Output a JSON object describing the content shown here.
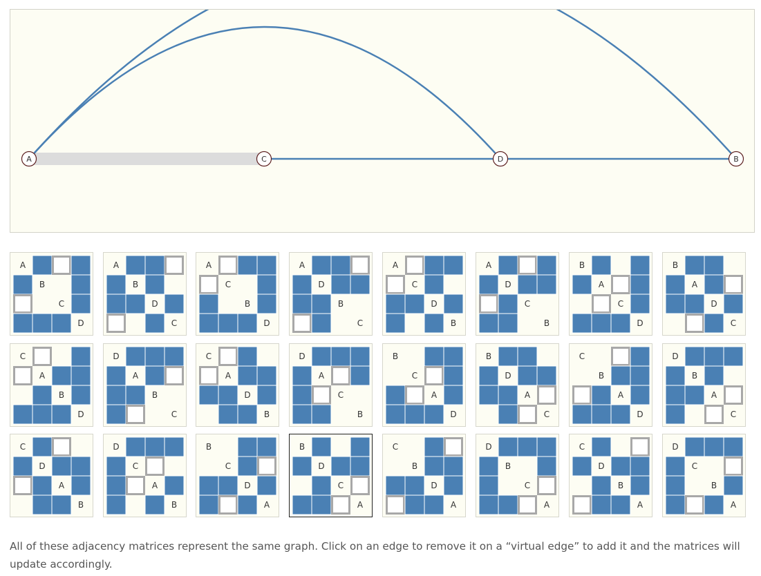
{
  "graph": {
    "nodes": [
      "A",
      "C",
      "D",
      "B"
    ],
    "edges": [
      [
        "A",
        "B"
      ],
      [
        "A",
        "D"
      ],
      [
        "C",
        "D"
      ],
      [
        "D",
        "B"
      ]
    ],
    "virtual_edges": [
      [
        "A",
        "C"
      ]
    ]
  },
  "colors": {
    "edge": "#4a80b4",
    "cell_filled": "#4a80b4",
    "cell_virtual_border": "#a8a8a8",
    "panel_bg": "#fdfdf3",
    "virtual_edge": "#dcdcdc",
    "node_border": "#5c1f1f"
  },
  "matrices": [
    [
      "A",
      "B",
      "C",
      "D"
    ],
    [
      "A",
      "B",
      "D",
      "C"
    ],
    [
      "A",
      "C",
      "B",
      "D"
    ],
    [
      "A",
      "D",
      "B",
      "C"
    ],
    [
      "A",
      "C",
      "D",
      "B"
    ],
    [
      "A",
      "D",
      "C",
      "B"
    ],
    [
      "B",
      "A",
      "C",
      "D"
    ],
    [
      "B",
      "A",
      "D",
      "C"
    ],
    [
      "C",
      "A",
      "B",
      "D"
    ],
    [
      "D",
      "A",
      "B",
      "C"
    ],
    [
      "C",
      "A",
      "D",
      "B"
    ],
    [
      "D",
      "A",
      "C",
      "B"
    ],
    [
      "B",
      "C",
      "A",
      "D"
    ],
    [
      "B",
      "D",
      "A",
      "C"
    ],
    [
      "C",
      "B",
      "A",
      "D"
    ],
    [
      "D",
      "B",
      "A",
      "C"
    ],
    [
      "C",
      "D",
      "A",
      "B"
    ],
    [
      "D",
      "C",
      "A",
      "B"
    ],
    [
      "B",
      "C",
      "D",
      "A"
    ],
    [
      "B",
      "D",
      "C",
      "A"
    ],
    [
      "C",
      "B",
      "D",
      "A"
    ],
    [
      "D",
      "B",
      "C",
      "A"
    ],
    [
      "C",
      "D",
      "B",
      "A"
    ],
    [
      "D",
      "C",
      "B",
      "A"
    ]
  ],
  "selected_matrix_index": 19,
  "caption": "All of these adjacency matrices represent the same graph. Click on an edge to remove it on a “virtual edge” to add it and the matrices will update accordingly."
}
